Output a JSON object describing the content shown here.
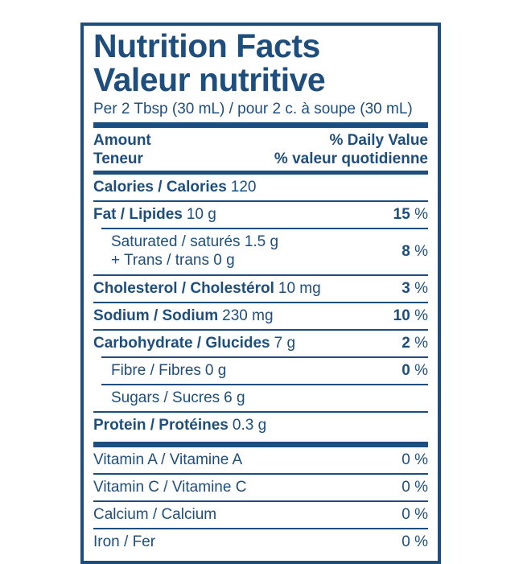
{
  "accent_color": "#1d4e7d",
  "label": {
    "title_en": "Nutrition Facts",
    "title_fr": "Valeur nutritive",
    "serving": "Per 2 Tbsp (30 mL) / pour 2 c. à soupe (30 mL)",
    "header": {
      "amount_en": "Amount",
      "amount_fr": "Teneur",
      "dv_en": "% Daily Value",
      "dv_fr": "% valeur quotidienne"
    },
    "calories": {
      "name": "Calories / Calories",
      "amount": "120"
    },
    "nutrients": [
      {
        "name": "Fat / Lipides",
        "amount": "10 g",
        "dv": "15",
        "unit": "%"
      },
      {
        "lines": [
          "Saturated / saturés 1.5 g",
          "+ Trans / trans 0 g"
        ],
        "dv": "8",
        "unit": "%"
      },
      {
        "name": "Cholesterol / Cholestérol",
        "amount": "10 mg",
        "dv": "3",
        "unit": "%"
      },
      {
        "name": "Sodium / Sodium",
        "amount": "230 mg",
        "dv": "10",
        "unit": "%"
      },
      {
        "name": "Carbohydrate / Glucides",
        "amount": "7 g",
        "dv": "2",
        "unit": "%"
      },
      {
        "name": "Fibre / Fibres",
        "amount": "0 g",
        "dv": "0",
        "unit": "%"
      },
      {
        "name": "Sugars / Sucres",
        "amount": "6 g"
      },
      {
        "name": "Protein / Protéines",
        "amount": "0.3 g"
      }
    ],
    "micronutrients": [
      {
        "name": "Vitamin A / Vitamine A",
        "dv": "0",
        "unit": "%"
      },
      {
        "name": "Vitamin C / Vitamine C",
        "dv": "0",
        "unit": "%"
      },
      {
        "name": "Calcium / Calcium",
        "dv": "0",
        "unit": "%"
      },
      {
        "name": "Iron / Fer",
        "dv": "0",
        "unit": "%"
      }
    ]
  }
}
